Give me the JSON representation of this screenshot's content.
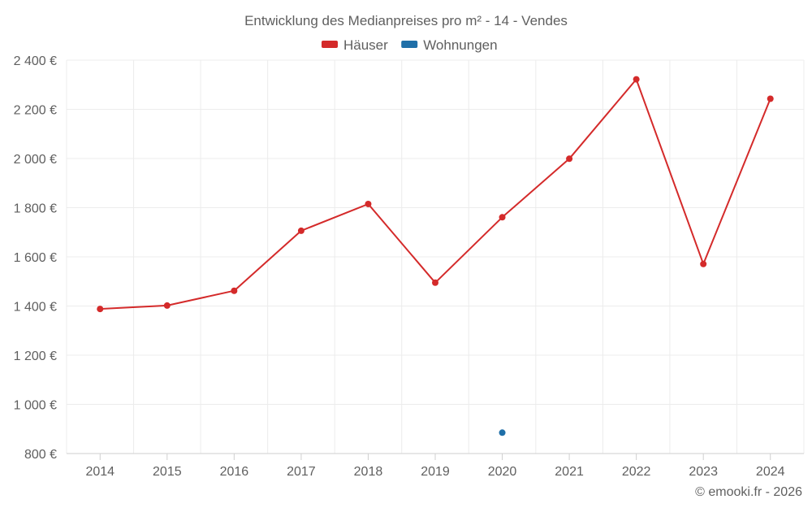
{
  "chart_data": {
    "type": "line",
    "title": "Entwicklung des Medianpreises pro m² - 14 - Vendes",
    "categories": [
      "2014",
      "2015",
      "2016",
      "2017",
      "2018",
      "2019",
      "2020",
      "2021",
      "2022",
      "2023",
      "2024"
    ],
    "series": [
      {
        "name": "Häuser",
        "color": "#d42a2a",
        "values": [
          1388,
          1402,
          1462,
          1706,
          1815,
          1495,
          1761,
          1999,
          2322,
          1571,
          2243
        ]
      },
      {
        "name": "Wohnungen",
        "color": "#1f6fa8",
        "values": [
          null,
          null,
          null,
          null,
          null,
          null,
          885,
          null,
          null,
          null,
          null
        ]
      }
    ],
    "ylim": [
      800,
      2400
    ],
    "yticks": [
      800,
      1000,
      1200,
      1400,
      1600,
      1800,
      2000,
      2200,
      2400
    ],
    "ytick_labels": [
      "800 €",
      "1 000 €",
      "1 200 €",
      "1 400 €",
      "1 600 €",
      "1 800 €",
      "2 000 €",
      "2 200 €",
      "2 400 €"
    ],
    "xlabel": "",
    "ylabel": "",
    "grid": true,
    "legend_position": "top-center"
  },
  "credit": "© emooki.fr - 2026"
}
